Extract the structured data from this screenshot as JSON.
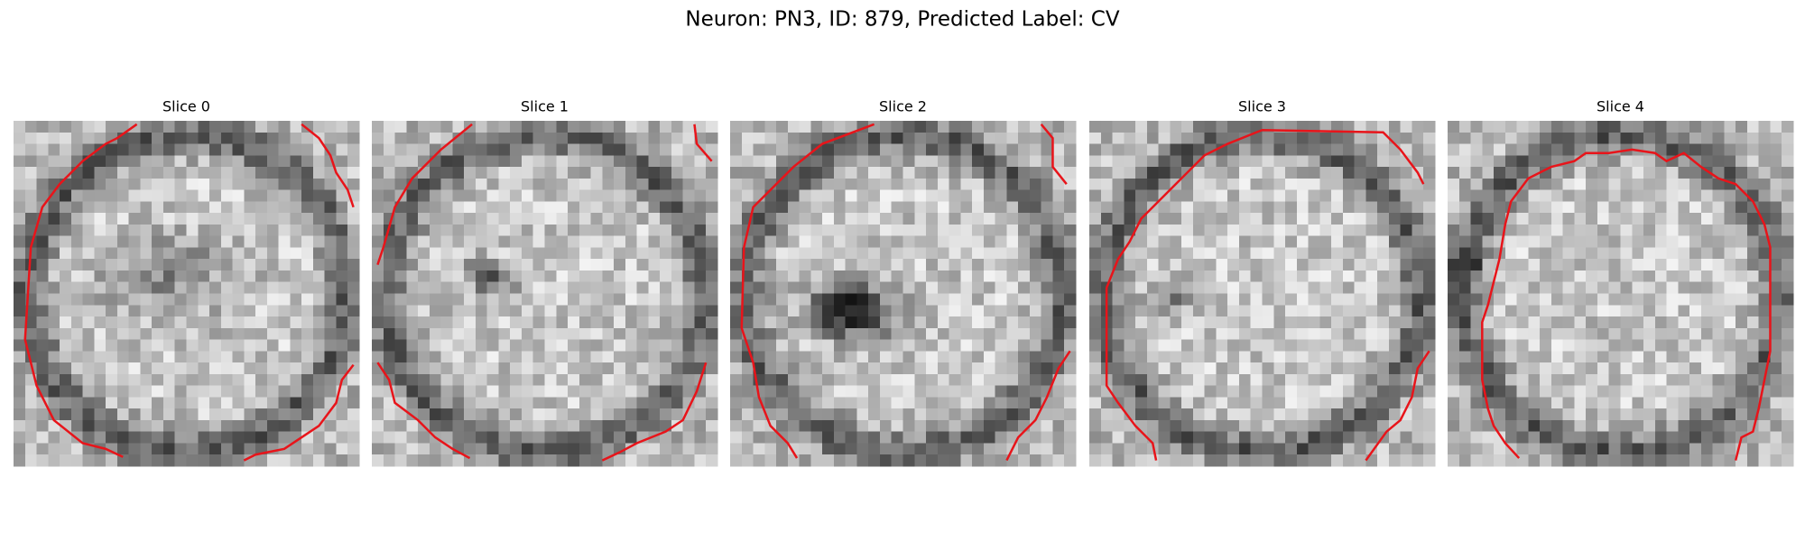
{
  "header": {
    "title": "Neuron: PN3, ID: 879, Predicted Label: CV"
  },
  "panels": [
    {
      "title": "Slice 0"
    },
    {
      "title": "Slice 1"
    },
    {
      "title": "Slice 2"
    },
    {
      "title": "Slice 3"
    },
    {
      "title": "Slice 4"
    }
  ]
}
